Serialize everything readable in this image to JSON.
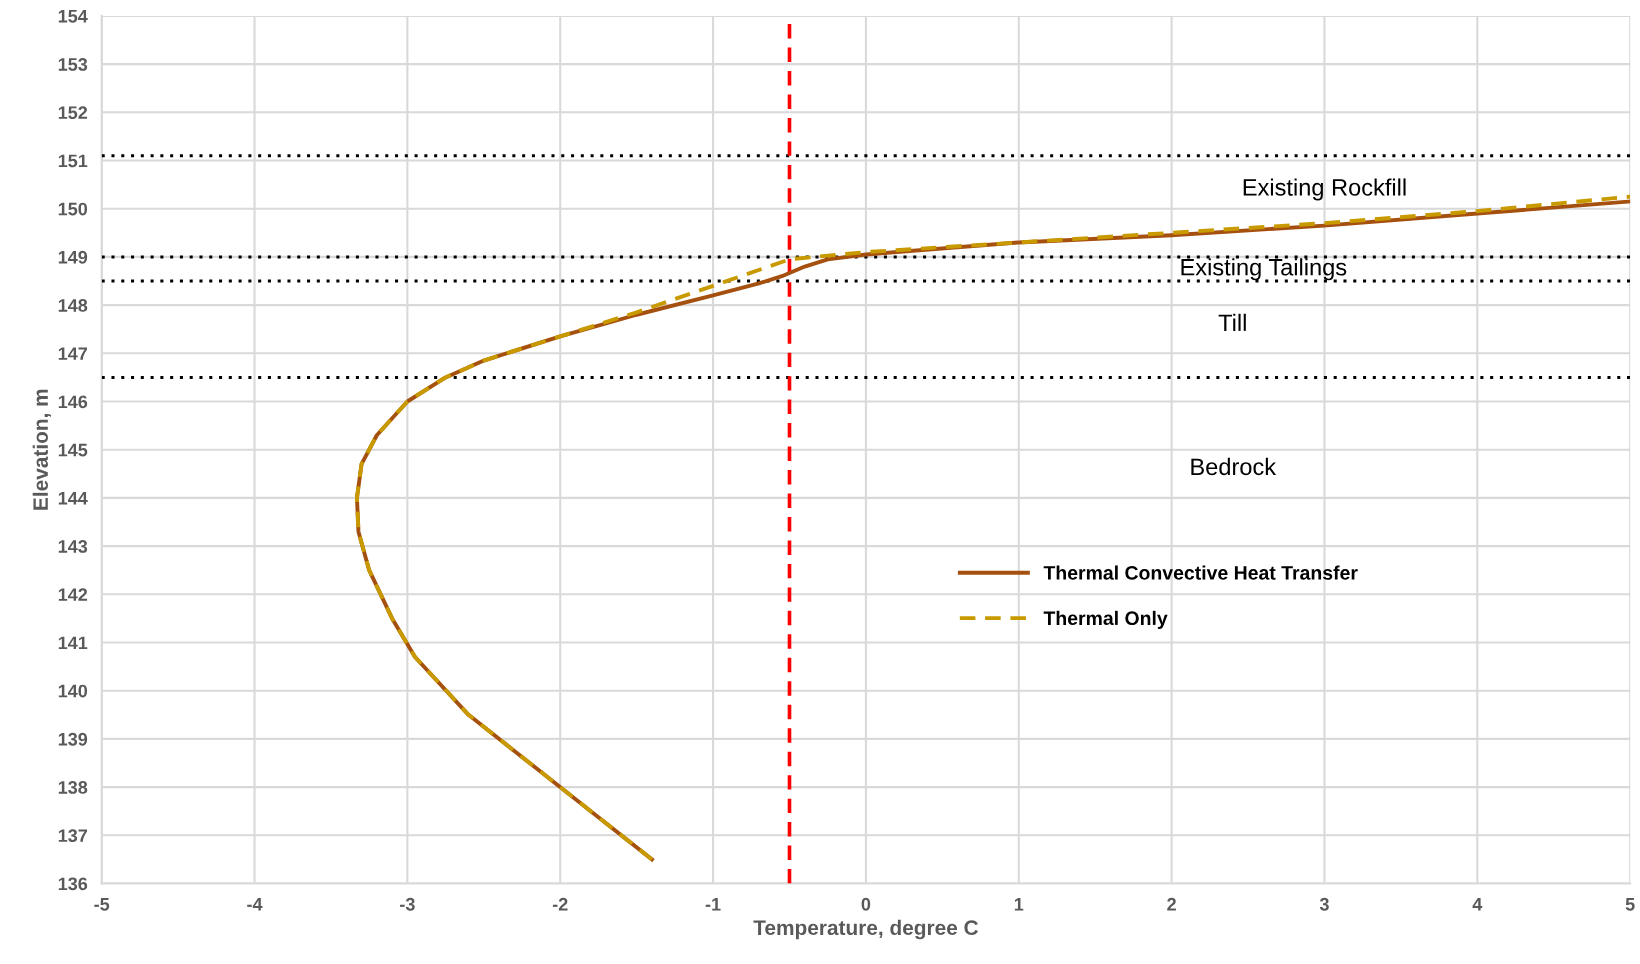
{
  "chart_data": {
    "type": "line",
    "xlabel": "Temperature, degree C",
    "ylabel": "Elevation, m",
    "xlim": [
      -5,
      5
    ],
    "xticks": [
      -5,
      -4,
      -3,
      -2,
      -1,
      0,
      1,
      2,
      3,
      4,
      5
    ],
    "ylim": [
      136,
      154
    ],
    "yticks": [
      136,
      137,
      138,
      139,
      140,
      141,
      142,
      143,
      144,
      145,
      146,
      147,
      148,
      149,
      150,
      151,
      152,
      153,
      154
    ],
    "grid": true,
    "legend": "center right",
    "marker": "none",
    "series": [
      {
        "name": "Thermal Convective Heat Transfer",
        "color": "#a5500f",
        "line_style": "solid",
        "x": [
          -1.4,
          -1.8,
          -2.2,
          -2.6,
          -2.95,
          -3.1,
          -3.25,
          -3.32,
          -3.33,
          -3.3,
          -3.2,
          -3.0,
          -2.75,
          -2.5,
          -2.0,
          -1.5,
          -1.0,
          -0.7,
          -0.55,
          -0.4,
          -0.25,
          0,
          1,
          2,
          3,
          4,
          5
        ],
        "values": [
          136.5,
          137.5,
          138.5,
          139.5,
          140.7,
          141.5,
          142.5,
          143.3,
          144,
          144.7,
          145.3,
          146,
          146.5,
          146.85,
          147.35,
          147.8,
          148.2,
          148.45,
          148.6,
          148.8,
          148.95,
          149.05,
          149.3,
          149.45,
          149.65,
          149.9,
          150.15
        ]
      },
      {
        "name": "Thermal Only",
        "color": "#c89a00",
        "line_style": "dashed",
        "x": [
          -1.4,
          -1.8,
          -2.2,
          -2.6,
          -2.95,
          -3.1,
          -3.25,
          -3.32,
          -3.33,
          -3.3,
          -3.2,
          -3.0,
          -2.75,
          -2.5,
          -2.0,
          -1.5,
          -1.0,
          -0.5,
          0,
          1,
          2,
          3,
          4,
          5
        ],
        "values": [
          136.5,
          137.5,
          138.5,
          139.5,
          140.7,
          141.5,
          142.5,
          143.3,
          144,
          144.7,
          145.3,
          146,
          146.5,
          146.85,
          147.35,
          147.85,
          148.4,
          148.95,
          149.1,
          149.3,
          149.5,
          149.7,
          149.95,
          150.25
        ]
      }
    ],
    "ref_lines": [
      {
        "axis": "y",
        "value": 151.1,
        "color": "#000000",
        "line_style": "dotted"
      },
      {
        "axis": "y",
        "value": 149,
        "color": "#000000",
        "line_style": "dotted"
      },
      {
        "axis": "y",
        "value": 148.5,
        "color": "#000000",
        "line_style": "dotted"
      },
      {
        "axis": "y",
        "value": 146.5,
        "color": "#000000",
        "line_style": "dotted"
      },
      {
        "axis": "x",
        "value": -0.5,
        "color": "#ff0000",
        "line_style": "dashed"
      }
    ],
    "annotations": [
      "Existing Rockfill",
      "Existing Tailings",
      "Till",
      "Bedrock"
    ]
  }
}
